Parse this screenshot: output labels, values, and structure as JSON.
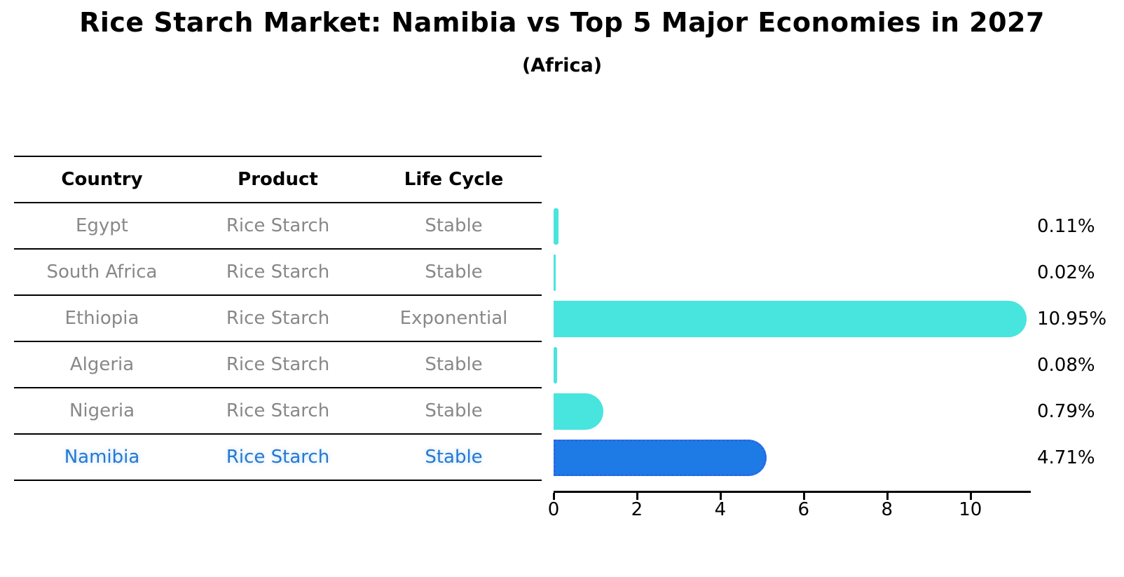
{
  "title": "Rice Starch Market: Namibia vs Top 5 Major Economies in 2027",
  "subtitle": "(Africa)",
  "table": {
    "headers": [
      "Country",
      "Product",
      "Life Cycle"
    ],
    "rows": [
      {
        "country": "Egypt",
        "product": "Rice Starch",
        "life_cycle": "Stable",
        "highlight": false
      },
      {
        "country": "South Africa",
        "product": "Rice Starch",
        "life_cycle": "Stable",
        "highlight": false
      },
      {
        "country": "Ethiopia",
        "product": "Rice Starch",
        "life_cycle": "Exponential",
        "highlight": false
      },
      {
        "country": "Algeria",
        "product": "Rice Starch",
        "life_cycle": "Stable",
        "highlight": false
      },
      {
        "country": "Nigeria",
        "product": "Rice Starch",
        "life_cycle": "Stable",
        "highlight": false
      },
      {
        "country": "Namibia",
        "product": "Rice Starch",
        "life_cycle": "Stable",
        "highlight": true
      }
    ]
  },
  "chart_data": {
    "type": "bar",
    "orientation": "horizontal",
    "title": "Rice Starch Market: Namibia vs Top 5 Major Economies in 2027 (Africa)",
    "categories": [
      "Egypt",
      "South Africa",
      "Ethiopia",
      "Algeria",
      "Nigeria",
      "Namibia"
    ],
    "values": [
      0.11,
      0.02,
      10.95,
      0.08,
      0.79,
      4.71
    ],
    "value_labels": [
      "0.11%",
      "0.02%",
      "10.95%",
      "0.08%",
      "0.79%",
      "4.71%"
    ],
    "x_ticks": [
      0,
      2,
      4,
      6,
      8,
      10
    ],
    "xlim": [
      0,
      11.4
    ],
    "xlabel": "",
    "ylabel": "",
    "grid": false,
    "legend": false,
    "bar_color": "#48E4DE",
    "highlight_index": 5,
    "highlight_color": "#1E7BE5",
    "highlight_edge_color": "#2D62E8",
    "highlight_edge_style": "dotted"
  }
}
